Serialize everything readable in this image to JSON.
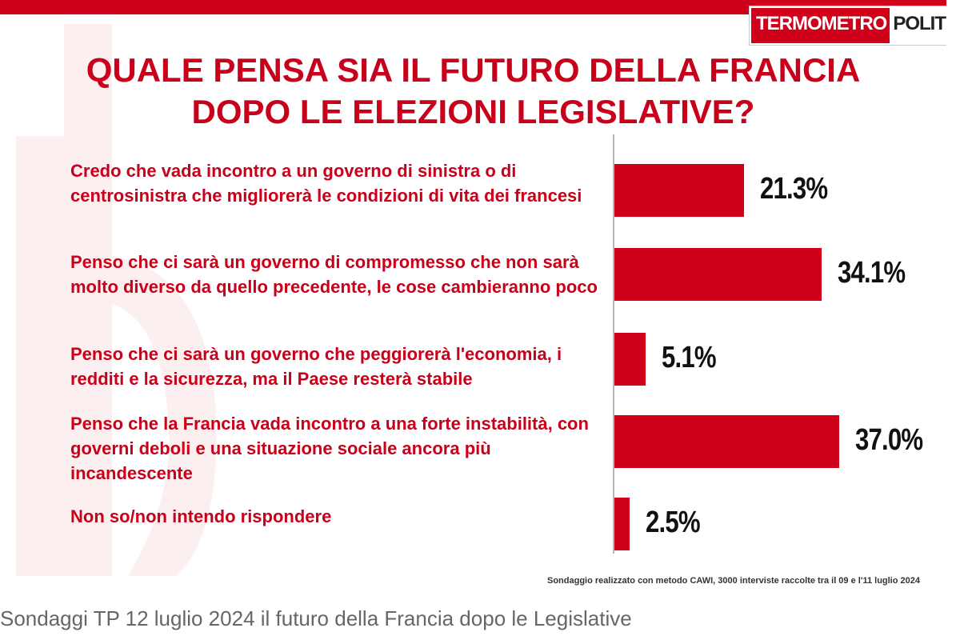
{
  "logo": {
    "left": "TERMOMETRO",
    "right": "POLITICO"
  },
  "title_line1": "QUALE PENSA SIA IL FUTURO DELLA FRANCIA",
  "title_line2": "DOPO LE ELEZIONI LEGISLATIVE?",
  "colors": {
    "accent": "#d0001b",
    "title": "#c8001a",
    "value_text": "#111111"
  },
  "chart_data": {
    "type": "bar",
    "orientation": "horizontal",
    "categories": [
      "Credo che vada incontro a un governo di sinistra o di centrosinistra che migliorerà  le condizioni di vita dei francesi",
      "Penso che ci sarà un governo di compromesso che non sarà molto diverso da quello precedente, le cose cambieranno poco",
      "Penso che ci sarà un governo che peggiorerà l'economia, i redditi e la sicurezza, ma il Paese resterà stabile",
      "Penso che la Francia vada incontro a una forte instabilità, con governi deboli e una situazione sociale ancora più incandescente",
      "Non so/non intendo rispondere"
    ],
    "values": [
      21.3,
      34.1,
      5.1,
      37.0,
      2.5
    ],
    "value_labels": [
      "21.3%",
      "34.1%",
      "5.1%",
      "37.0%",
      "2.5%"
    ],
    "grid": false,
    "legend": "none"
  },
  "footnote": "Sondaggio realizzato con metodo CAWI, 3000 interviste raccolte tra il 09 e l'11 luglio 2024",
  "caption": "Sondaggi TP 12 luglio 2024 il futuro della Francia dopo le Legislative"
}
